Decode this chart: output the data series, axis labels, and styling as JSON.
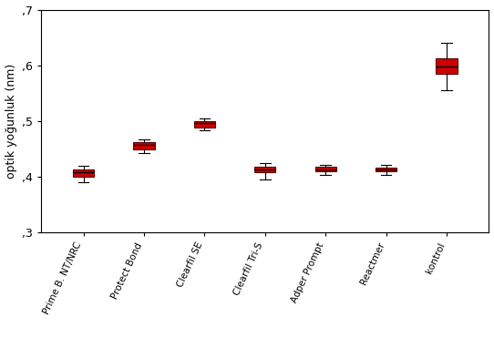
{
  "categories": [
    "Prime B. NT/NRC",
    "Protect Bond",
    "Clearfil SE",
    "Clearfil Tri-S",
    "Adper Prompt",
    "Reactmer",
    "kontrol"
  ],
  "ylabel": "optik yoğunluk (nm)",
  "ylim": [
    0.3,
    0.7
  ],
  "yticks": [
    0.3,
    0.4,
    0.5,
    0.6,
    0.7
  ],
  "ytick_labels": [
    ",3",
    ",4",
    ",5",
    ",6",
    ",7"
  ],
  "box_data": [
    {
      "q1": 0.4,
      "median": 0.408,
      "q3": 0.413,
      "whislo": 0.39,
      "whishi": 0.42
    },
    {
      "q1": 0.45,
      "median": 0.457,
      "q3": 0.462,
      "whislo": 0.443,
      "whishi": 0.467
    },
    {
      "q1": 0.488,
      "median": 0.496,
      "q3": 0.5,
      "whislo": 0.483,
      "whishi": 0.505
    },
    {
      "q1": 0.408,
      "median": 0.413,
      "q3": 0.418,
      "whislo": 0.395,
      "whishi": 0.425
    },
    {
      "q1": 0.41,
      "median": 0.414,
      "q3": 0.418,
      "whislo": 0.403,
      "whishi": 0.422
    },
    {
      "q1": 0.41,
      "median": 0.413,
      "q3": 0.417,
      "whislo": 0.404,
      "whishi": 0.421
    },
    {
      "q1": 0.585,
      "median": 0.598,
      "q3": 0.613,
      "whislo": 0.555,
      "whishi": 0.64
    }
  ],
  "box_facecolor": "#CC0000",
  "box_edgecolor": "#5a0000",
  "median_color": "#000000",
  "whisker_color": "#000000",
  "cap_color": "#000000",
  "background_color": "#ffffff",
  "box_width": 0.35,
  "figsize": [
    5.42,
    3.71
  ],
  "dpi": 100
}
